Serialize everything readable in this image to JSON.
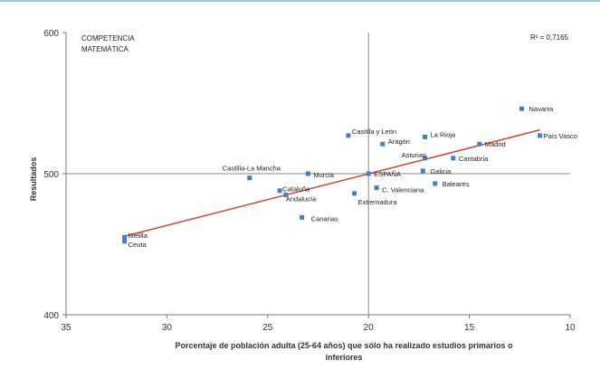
{
  "chart_data": {
    "type": "scatter",
    "title_lines": [
      "COMPETENCIA",
      "MATEMÁTICA"
    ],
    "r2_label": "R² = 0,7165",
    "xlabel_lines": [
      "Porcentaje de población adulta (25-64 años) que sólo ha realizado estudios primarios o",
      "inferiores"
    ],
    "ylabel": "Resultados",
    "xlim": [
      35,
      10
    ],
    "ylim": [
      400,
      600
    ],
    "x_ticks": [
      35,
      30,
      25,
      20,
      15,
      10
    ],
    "y_ticks": [
      400,
      500,
      600
    ],
    "grid": false,
    "reference_lines": {
      "x": 20,
      "y": 500
    },
    "point_color": "#3f7fd0",
    "trend_color": "#d9442a",
    "trendline": {
      "x": [
        32,
        11.5
      ],
      "y": [
        456,
        531
      ]
    },
    "points": [
      {
        "label": "Navarra",
        "x": 12.4,
        "y": 546
      },
      {
        "label": "País Vasco",
        "x": 11.5,
        "y": 527
      },
      {
        "label": "Madrid",
        "x": 14.5,
        "y": 521
      },
      {
        "label": "Cantabria",
        "x": 15.8,
        "y": 511
      },
      {
        "label": "Castilla y León",
        "x": 21.0,
        "y": 527
      },
      {
        "label": "La Rioja",
        "x": 17.2,
        "y": 526
      },
      {
        "label": "Aragón",
        "x": 19.3,
        "y": 521
      },
      {
        "label": "Asturias",
        "x": 17.2,
        "y": 511
      },
      {
        "label": "Galicia",
        "x": 17.3,
        "y": 502
      },
      {
        "label": "Baleares",
        "x": 16.7,
        "y": 493
      },
      {
        "label": "ESPAÑA",
        "x": 20.0,
        "y": 500
      },
      {
        "label": "C. Valenciana",
        "x": 19.6,
        "y": 490
      },
      {
        "label": "Extremadura",
        "x": 20.7,
        "y": 486
      },
      {
        "label": "Murcia",
        "x": 23.0,
        "y": 500
      },
      {
        "label": "Castilla-La Mancha",
        "x": 25.9,
        "y": 497
      },
      {
        "label": "Cataluña",
        "x": 24.4,
        "y": 488
      },
      {
        "label": "Andalucía",
        "x": 24.1,
        "y": 485
      },
      {
        "label": "Canarias",
        "x": 23.3,
        "y": 469
      },
      {
        "label": "Melilla",
        "x": 32.1,
        "y": 455
      },
      {
        "label": "Ceuta",
        "x": 32.1,
        "y": 452
      }
    ]
  }
}
